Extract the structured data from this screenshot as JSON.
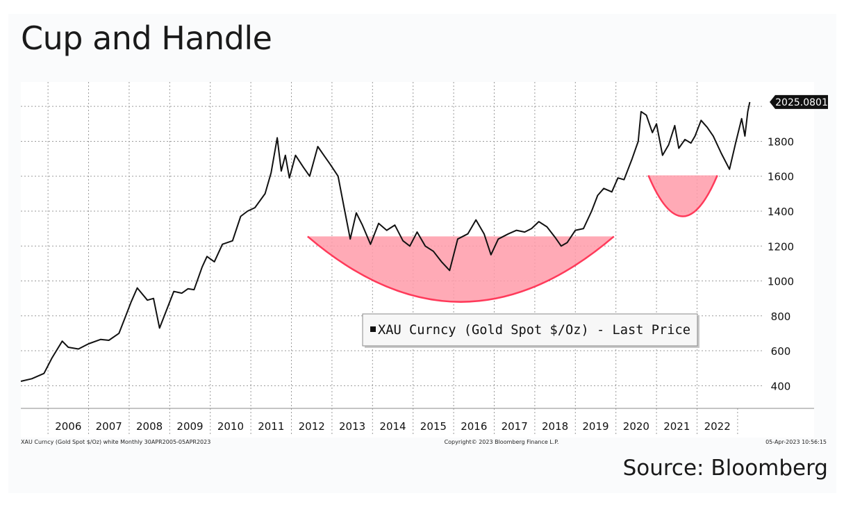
{
  "page": {
    "title": "Cup and Handle",
    "source": "Source: Bloomberg"
  },
  "chart_data": {
    "type": "line",
    "series": [
      {
        "name": "XAU Curncy (Gold Spot  $/Oz) - Last Price",
        "color": "#111111",
        "points": [
          [
            2005.33,
            425
          ],
          [
            2005.6,
            440
          ],
          [
            2005.9,
            470
          ],
          [
            2006.1,
            560
          ],
          [
            2006.35,
            655
          ],
          [
            2006.5,
            620
          ],
          [
            2006.75,
            610
          ],
          [
            2007.0,
            640
          ],
          [
            2007.3,
            665
          ],
          [
            2007.5,
            660
          ],
          [
            2007.75,
            700
          ],
          [
            2007.9,
            790
          ],
          [
            2008.05,
            880
          ],
          [
            2008.2,
            960
          ],
          [
            2008.45,
            890
          ],
          [
            2008.6,
            900
          ],
          [
            2008.75,
            730
          ],
          [
            2008.9,
            820
          ],
          [
            2009.1,
            940
          ],
          [
            2009.3,
            930
          ],
          [
            2009.45,
            955
          ],
          [
            2009.6,
            950
          ],
          [
            2009.8,
            1080
          ],
          [
            2009.92,
            1140
          ],
          [
            2010.1,
            1110
          ],
          [
            2010.3,
            1210
          ],
          [
            2010.55,
            1230
          ],
          [
            2010.75,
            1370
          ],
          [
            2010.92,
            1400
          ],
          [
            2011.1,
            1420
          ],
          [
            2011.35,
            1500
          ],
          [
            2011.5,
            1620
          ],
          [
            2011.65,
            1820
          ],
          [
            2011.75,
            1630
          ],
          [
            2011.85,
            1720
          ],
          [
            2011.95,
            1590
          ],
          [
            2012.1,
            1720
          ],
          [
            2012.3,
            1650
          ],
          [
            2012.45,
            1600
          ],
          [
            2012.65,
            1770
          ],
          [
            2012.8,
            1720
          ],
          [
            2012.95,
            1670
          ],
          [
            2013.15,
            1600
          ],
          [
            2013.3,
            1420
          ],
          [
            2013.45,
            1240
          ],
          [
            2013.6,
            1390
          ],
          [
            2013.75,
            1320
          ],
          [
            2013.95,
            1210
          ],
          [
            2014.15,
            1330
          ],
          [
            2014.35,
            1290
          ],
          [
            2014.55,
            1320
          ],
          [
            2014.75,
            1230
          ],
          [
            2014.92,
            1200
          ],
          [
            2015.1,
            1280
          ],
          [
            2015.3,
            1200
          ],
          [
            2015.5,
            1170
          ],
          [
            2015.7,
            1110
          ],
          [
            2015.9,
            1060
          ],
          [
            2016.1,
            1240
          ],
          [
            2016.35,
            1270
          ],
          [
            2016.55,
            1350
          ],
          [
            2016.75,
            1270
          ],
          [
            2016.92,
            1150
          ],
          [
            2017.1,
            1240
          ],
          [
            2017.35,
            1270
          ],
          [
            2017.55,
            1290
          ],
          [
            2017.75,
            1280
          ],
          [
            2017.92,
            1300
          ],
          [
            2018.1,
            1340
          ],
          [
            2018.3,
            1310
          ],
          [
            2018.5,
            1250
          ],
          [
            2018.65,
            1200
          ],
          [
            2018.8,
            1220
          ],
          [
            2019.0,
            1290
          ],
          [
            2019.2,
            1300
          ],
          [
            2019.4,
            1400
          ],
          [
            2019.55,
            1490
          ],
          [
            2019.7,
            1530
          ],
          [
            2019.9,
            1510
          ],
          [
            2020.05,
            1590
          ],
          [
            2020.2,
            1580
          ],
          [
            2020.4,
            1700
          ],
          [
            2020.55,
            1800
          ],
          [
            2020.62,
            1970
          ],
          [
            2020.75,
            1950
          ],
          [
            2020.9,
            1850
          ],
          [
            2021.0,
            1900
          ],
          [
            2021.15,
            1720
          ],
          [
            2021.3,
            1780
          ],
          [
            2021.45,
            1890
          ],
          [
            2021.55,
            1760
          ],
          [
            2021.7,
            1810
          ],
          [
            2021.85,
            1790
          ],
          [
            2021.95,
            1830
          ],
          [
            2022.1,
            1920
          ],
          [
            2022.25,
            1880
          ],
          [
            2022.4,
            1830
          ],
          [
            2022.6,
            1730
          ],
          [
            2022.8,
            1640
          ],
          [
            2022.95,
            1790
          ],
          [
            2023.1,
            1930
          ],
          [
            2023.18,
            1830
          ],
          [
            2023.25,
            1970
          ],
          [
            2023.3,
            2025.08
          ]
        ]
      }
    ],
    "x_ticks": [
      "2006",
      "2007",
      "2008",
      "2009",
      "2010",
      "2011",
      "2012",
      "2013",
      "2014",
      "2015",
      "2016",
      "2017",
      "2018",
      "2019",
      "2020",
      "2021",
      "2022"
    ],
    "y_ticks": [
      "400",
      "600",
      "800",
      "1000",
      "1200",
      "1400",
      "1600",
      "1800"
    ],
    "xlim": [
      2005.33,
      2023.55
    ],
    "ylim": [
      270,
      2140
    ],
    "grid": true,
    "last_value_label": "2025.0801",
    "legend": {
      "position": "bottom-center",
      "text": "XAU Curncy (Gold Spot  $/Oz) - Last Price"
    },
    "annotations": {
      "cup": {
        "x_start": 2012.4,
        "x_end": 2019.95,
        "top": 1255,
        "bottom": 880,
        "color": "#ff9ba9"
      },
      "handle": {
        "x_start": 2020.8,
        "x_end": 2022.5,
        "top": 1605,
        "bottom": 1370,
        "color": "#ff9ba9"
      }
    },
    "footer_left": "XAU Curncy (Gold Spot  $/Oz) white  Monthly 30APR2005-05APR2023",
    "footer_center": "Copyright© 2023 Bloomberg Finance L.P.",
    "footer_right": "05-Apr-2023 10:56:15"
  }
}
